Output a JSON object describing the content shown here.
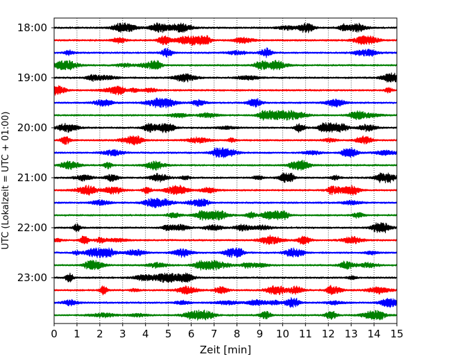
{
  "chart_data": {
    "type": "line",
    "subtype": "helicorder",
    "xlabel": "Zeit  [min]",
    "ylabel": "UTC (Lokalzeit = UTC + 01:00)",
    "xlim": [
      0,
      15
    ],
    "x_ticks": [
      0,
      1,
      2,
      3,
      4,
      5,
      6,
      7,
      8,
      9,
      10,
      11,
      12,
      13,
      14,
      15
    ],
    "x_tick_labels": [
      "0",
      "1",
      "2",
      "3",
      "4",
      "5",
      "6",
      "7",
      "8",
      "9",
      "10",
      "11",
      "12",
      "13",
      "14",
      "15"
    ],
    "y_tick_labels": [
      "18:00",
      "19:00",
      "20:00",
      "21:00",
      "22:00",
      "23:00"
    ],
    "trace_count": 24,
    "traces_per_hour": 4,
    "grid": "vertical dotted",
    "colors": [
      "#000000",
      "#ff0000",
      "#0000ff",
      "#008000"
    ]
  }
}
